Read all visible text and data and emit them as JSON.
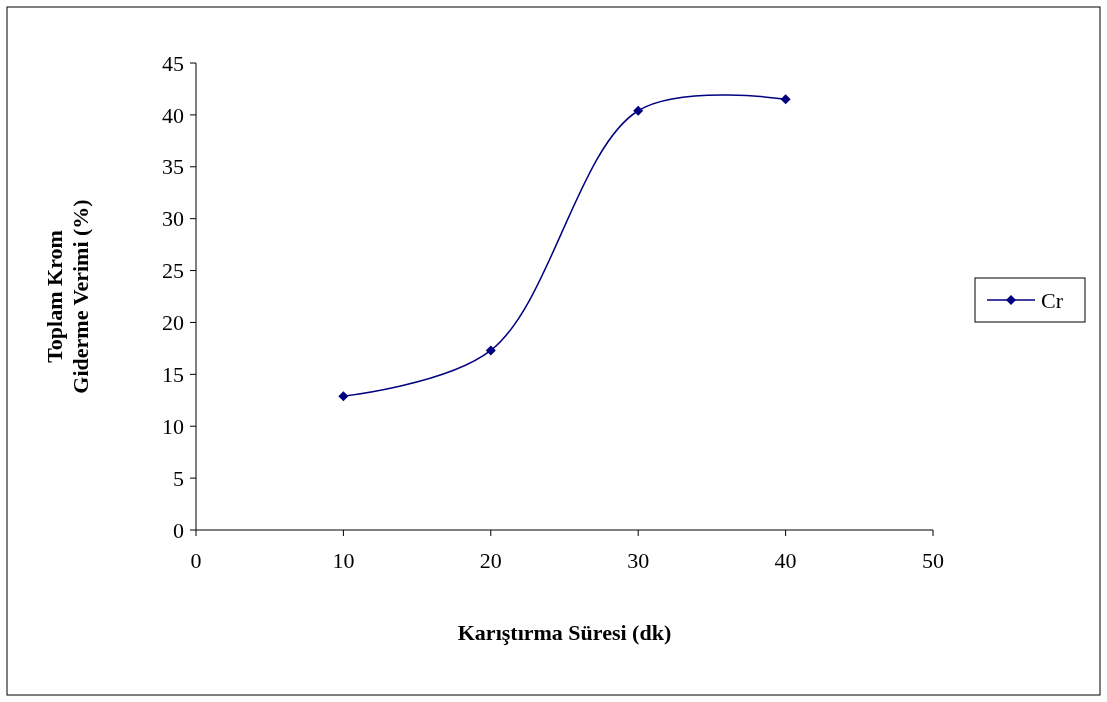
{
  "chart_data": {
    "type": "line",
    "xlabel": "Karıştırma Süresi (dk)",
    "ylabel": "Toplam Krom\nGiderme Verimi (%)",
    "x": [
      10,
      20,
      30,
      40
    ],
    "series": [
      {
        "name": "Cr",
        "color": "#000080",
        "values": [
          12.9,
          17.3,
          40.4,
          41.5
        ]
      }
    ],
    "xlim": [
      0,
      50
    ],
    "xticks": [
      0,
      10,
      20,
      30,
      40,
      50
    ],
    "ylim": [
      0,
      45
    ],
    "yticks": [
      0,
      5,
      10,
      15,
      20,
      25,
      30,
      35,
      40,
      45
    ],
    "grid": false,
    "legend": "right",
    "marker": "diamond",
    "line_style": "solid"
  }
}
